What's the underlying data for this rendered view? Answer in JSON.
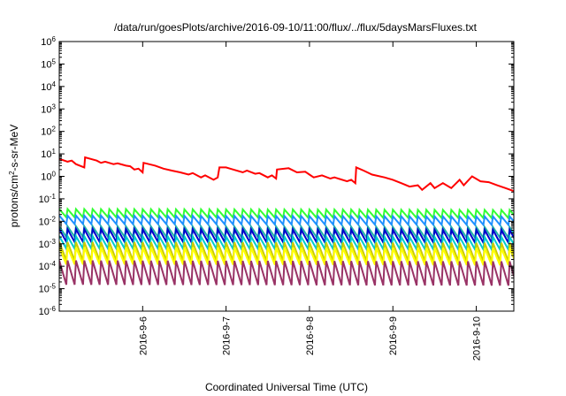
{
  "chart_data": {
    "type": "line",
    "title": "/data/run/goesPlots/archive/2016-09-10/11:00/flux/../flux/5daysMarsFluxes.txt",
    "xlabel": "Coordinated Universal Time (UTC)",
    "ylabel": "protons/cm²-s-sr-MeV",
    "yscale": "log",
    "ylim": [
      1e-06,
      1000000.0
    ],
    "xlim": [
      0,
      5.45
    ],
    "x_tick_labels": [
      "2016-9-6",
      "2016-9-7",
      "2016-9-8",
      "2016-9-9",
      "2016-9-10"
    ],
    "x_tick_values": [
      1,
      2,
      3,
      4,
      5
    ],
    "y_tick_labels": [
      {
        "base": "10",
        "exp": "6"
      },
      {
        "base": "10",
        "exp": "5"
      },
      {
        "base": "10",
        "exp": "4"
      },
      {
        "base": "10",
        "exp": "3"
      },
      {
        "base": "10",
        "exp": "2"
      },
      {
        "base": "10",
        "exp": "1"
      },
      {
        "base": "10",
        "exp": "0"
      },
      {
        "base": "10",
        "exp": "-1"
      },
      {
        "base": "10",
        "exp": "-2"
      },
      {
        "base": "10",
        "exp": "-3"
      },
      {
        "base": "10",
        "exp": "-4"
      },
      {
        "base": "10",
        "exp": "-5"
      },
      {
        "base": "10",
        "exp": "-6"
      }
    ],
    "y_tick_exponents": [
      6,
      5,
      4,
      3,
      2,
      1,
      0,
      -1,
      -2,
      -3,
      -4,
      -5,
      -6
    ],
    "grid": false,
    "legend": "none",
    "series": [
      {
        "color": "#ff0000",
        "points": [
          [
            0.0,
            6.0
          ],
          [
            0.1,
            4.5
          ],
          [
            0.15,
            5.0
          ],
          [
            0.2,
            3.5
          ],
          [
            0.3,
            2.5
          ],
          [
            0.31,
            7.0
          ],
          [
            0.45,
            5.0
          ],
          [
            0.5,
            4.0
          ],
          [
            0.55,
            4.5
          ],
          [
            0.65,
            3.5
          ],
          [
            0.7,
            3.8
          ],
          [
            0.8,
            3.0
          ],
          [
            0.85,
            2.8
          ],
          [
            0.9,
            2.0
          ],
          [
            0.95,
            2.2
          ],
          [
            1.0,
            1.5
          ],
          [
            1.01,
            4.0
          ],
          [
            1.15,
            3.0
          ],
          [
            1.25,
            2.2
          ],
          [
            1.35,
            1.8
          ],
          [
            1.45,
            1.5
          ],
          [
            1.55,
            1.2
          ],
          [
            1.6,
            1.4
          ],
          [
            1.7,
            0.9
          ],
          [
            1.75,
            1.1
          ],
          [
            1.85,
            0.7
          ],
          [
            1.9,
            0.9
          ],
          [
            1.92,
            2.5
          ],
          [
            2.0,
            2.5
          ],
          [
            2.05,
            2.2
          ],
          [
            2.2,
            1.5
          ],
          [
            2.25,
            1.8
          ],
          [
            2.35,
            1.3
          ],
          [
            2.4,
            1.4
          ],
          [
            2.5,
            0.9
          ],
          [
            2.55,
            1.1
          ],
          [
            2.6,
            0.8
          ],
          [
            2.61,
            2.0
          ],
          [
            2.75,
            2.3
          ],
          [
            2.85,
            1.5
          ],
          [
            2.95,
            1.6
          ],
          [
            3.0,
            1.2
          ],
          [
            3.05,
            0.9
          ],
          [
            3.15,
            1.1
          ],
          [
            3.25,
            0.8
          ],
          [
            3.3,
            0.9
          ],
          [
            3.45,
            0.6
          ],
          [
            3.5,
            0.7
          ],
          [
            3.55,
            0.5
          ],
          [
            3.56,
            2.5
          ],
          [
            3.65,
            1.8
          ],
          [
            3.75,
            1.2
          ],
          [
            3.9,
            0.9
          ],
          [
            4.0,
            0.7
          ],
          [
            4.1,
            0.5
          ],
          [
            4.2,
            0.35
          ],
          [
            4.3,
            0.4
          ],
          [
            4.35,
            0.25
          ],
          [
            4.45,
            0.5
          ],
          [
            4.5,
            0.3
          ],
          [
            4.6,
            0.5
          ],
          [
            4.7,
            0.3
          ],
          [
            4.8,
            0.7
          ],
          [
            4.85,
            0.4
          ],
          [
            4.95,
            1.0
          ],
          [
            5.05,
            0.6
          ],
          [
            5.15,
            0.55
          ],
          [
            5.25,
            0.4
          ],
          [
            5.35,
            0.3
          ],
          [
            5.45,
            0.22
          ]
        ]
      },
      {
        "color": "#33ff33",
        "sawtooth": {
          "high": 0.035,
          "low": 0.015,
          "period": 0.1,
          "drift": 0.6
        }
      },
      {
        "color": "#1e90ff",
        "sawtooth": {
          "high": 0.018,
          "low": 0.0075,
          "period": 0.1,
          "drift": 0.6
        }
      },
      {
        "color": "#20b2aa",
        "sawtooth": {
          "high": 0.006,
          "low": 0.002,
          "period": 0.1,
          "drift": 0.6
        }
      },
      {
        "color": "#0000cc",
        "sawtooth": {
          "high": 0.0045,
          "low": 0.0012,
          "period": 0.1,
          "drift": 0.6
        }
      },
      {
        "color": "#00cccc",
        "sawtooth": {
          "high": 0.0022,
          "low": 0.0006,
          "period": 0.1,
          "drift": 0.6
        }
      },
      {
        "color": "#cccc00",
        "sawtooth": {
          "high": 0.0012,
          "low": 0.00018,
          "period": 0.1,
          "drift": 0.6
        }
      },
      {
        "color": "#ffff00",
        "sawtooth": {
          "high": 0.0007,
          "low": 0.00012,
          "period": 0.1,
          "drift": 0.6
        }
      },
      {
        "color": "#993366",
        "sawtooth": {
          "high": 0.00018,
          "low": 1.5e-05,
          "period": 0.1,
          "drift": 0.6
        }
      }
    ]
  }
}
